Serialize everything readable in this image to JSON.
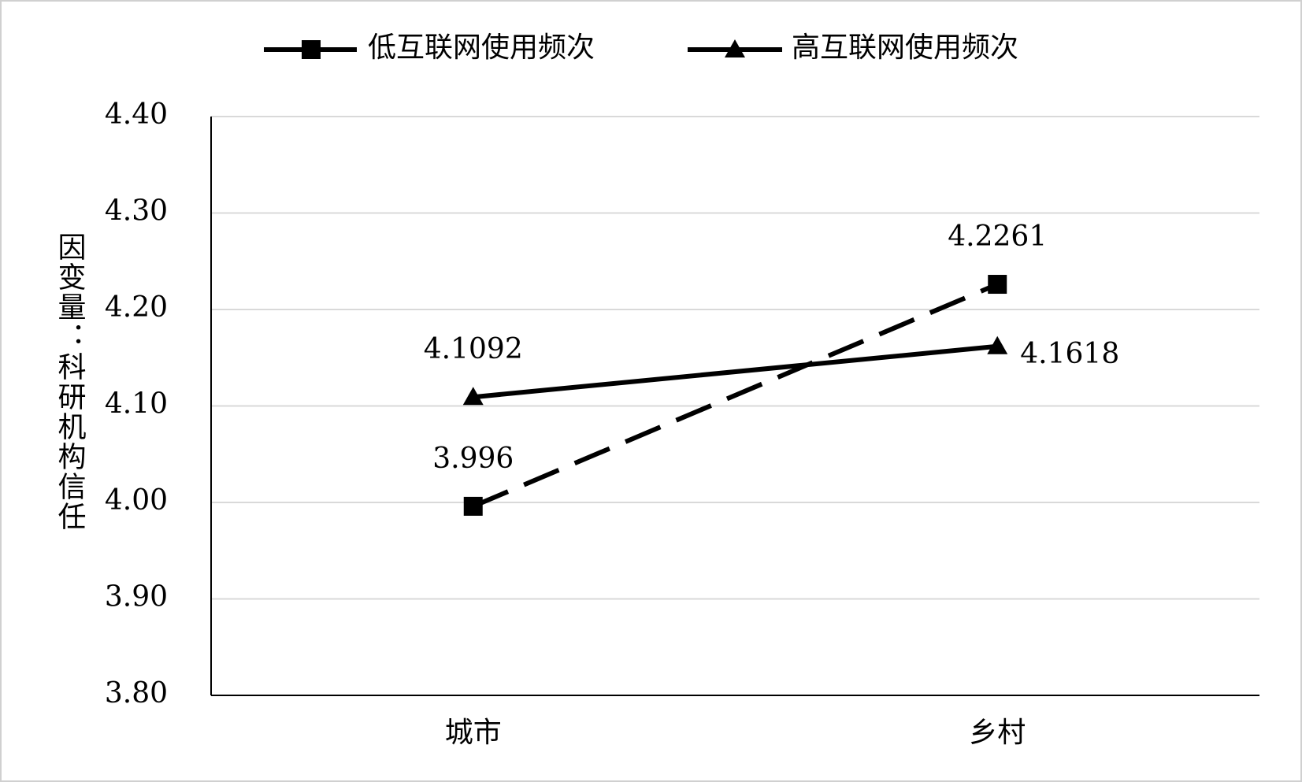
{
  "chart_data": {
    "type": "line",
    "y_label": "因变量：科研机构信任",
    "categories": [
      "城市",
      "乡村"
    ],
    "series": [
      {
        "name": "低互联网使用频次",
        "color": "#000000",
        "line_style": "dashed",
        "marker": "square",
        "values": [
          3.996,
          4.2261
        ]
      },
      {
        "name": "高互联网使用频次",
        "color": "#000000",
        "line_style": "solid",
        "marker": "triangle",
        "values": [
          4.1092,
          4.1618
        ]
      }
    ],
    "ylim": [
      3.8,
      4.4
    ],
    "yticks": [
      {
        "value": 3.8,
        "label": "3.80"
      },
      {
        "value": 3.9,
        "label": "3.90"
      },
      {
        "value": 4,
        "label": "4.00"
      },
      {
        "value": 4.1,
        "label": "4.10"
      },
      {
        "value": 4.2,
        "label": "4.20"
      },
      {
        "value": 4.3,
        "label": "4.30"
      },
      {
        "value": 4.4,
        "label": "4.40"
      }
    ],
    "grid": true,
    "legend": "top"
  }
}
